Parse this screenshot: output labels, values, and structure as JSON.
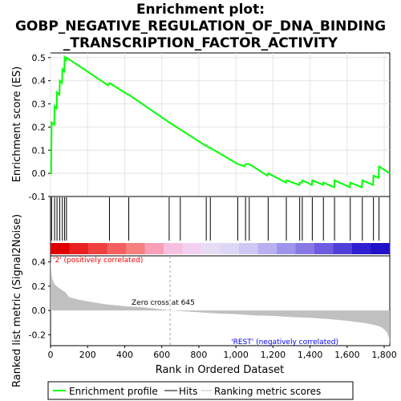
{
  "title_lines": [
    "Enrichment plot:",
    "GOBP_NEGATIVE_REGULATION_OF_DNA_BINDING",
    "_TRANSCRIPTION_FACTOR_ACTIVITY"
  ],
  "colors": {
    "es_line": "#00ff00",
    "hits": "#000000",
    "metric_fill": "#c0c0c0",
    "pos_label": "#ff0000",
    "neg_label": "#0000ff",
    "zero_cross_line": "#a0a0a0"
  },
  "chart_data": [
    {
      "type": "line",
      "panel": "enrichment",
      "ylabel": "Enrichment score (ES)",
      "ylim": [
        -0.1,
        0.52
      ],
      "yticks": [
        -0.1,
        0.0,
        0.1,
        0.2,
        0.3,
        0.4,
        0.5
      ],
      "ytick_labels": [
        "-0.1",
        "0.0",
        "0.1",
        "0.2",
        "0.3",
        "0.4",
        "0.5"
      ],
      "xlim": [
        0,
        1830
      ],
      "grid": true,
      "series": [
        {
          "name": "Enrichment profile",
          "x": [
            0,
            3,
            6,
            20,
            22,
            33,
            35,
            48,
            50,
            62,
            64,
            74,
            76,
            84,
            86,
            310,
            318,
            418,
            422,
            640,
            835,
            840,
            855,
            862,
            1010,
            1048,
            1052,
            1068,
            1072,
            1170,
            1174,
            1270,
            1272,
            1342,
            1344,
            1356,
            1358,
            1410,
            1412,
            1470,
            1472,
            1530,
            1532,
            1615,
            1617,
            1680,
            1682,
            1740,
            1742,
            1770,
            1772,
            1830
          ],
          "y": [
            0.0,
            0.0,
            0.22,
            0.21,
            0.29,
            0.28,
            0.35,
            0.34,
            0.4,
            0.39,
            0.45,
            0.44,
            0.5,
            0.49,
            0.5,
            0.38,
            0.39,
            0.34,
            0.34,
            0.22,
            0.12,
            0.12,
            0.11,
            0.11,
            0.04,
            0.03,
            0.04,
            0.04,
            0.04,
            -0.01,
            0.0,
            -0.04,
            -0.03,
            -0.05,
            -0.04,
            -0.04,
            -0.03,
            -0.05,
            -0.03,
            -0.05,
            -0.04,
            -0.06,
            -0.03,
            -0.06,
            -0.04,
            -0.06,
            -0.03,
            -0.05,
            -0.01,
            -0.02,
            0.03,
            0.0
          ]
        }
      ]
    },
    {
      "type": "scatter",
      "panel": "hits",
      "series": [
        {
          "name": "Hits",
          "x": [
            6,
            22,
            35,
            50,
            64,
            76,
            86,
            318,
            422,
            640,
            700,
            840,
            862,
            1010,
            1052,
            1072,
            1174,
            1272,
            1344,
            1358,
            1412,
            1472,
            1532,
            1617,
            1682,
            1742,
            1772
          ]
        }
      ]
    },
    {
      "type": "area",
      "panel": "ranking_metric",
      "ylabel": "Ranked list metric (Signal2Noise)",
      "xlabel": "Rank in Ordered Dataset",
      "ylim": [
        -0.29,
        0.45
      ],
      "yticks": [
        -0.2,
        0.0,
        0.2,
        0.4
      ],
      "ytick_labels": [
        "-0.2",
        "0.0",
        "0.2",
        "0.4"
      ],
      "xticks": [
        0,
        200,
        400,
        600,
        800,
        1000,
        1200,
        1400,
        1600,
        1800
      ],
      "xtick_labels": [
        "0",
        "200",
        "400",
        "600",
        "800",
        "1,000",
        "1,200",
        "1,400",
        "1,600",
        "1,800"
      ],
      "xlim": [
        0,
        1830
      ],
      "series": [
        {
          "name": "Ranking metric scores",
          "x": [
            0,
            5,
            10,
            20,
            40,
            60,
            80,
            100,
            150,
            200,
            300,
            400,
            500,
            600,
            645,
            700,
            800,
            900,
            1000,
            1100,
            1200,
            1300,
            1400,
            1500,
            1600,
            1650,
            1700,
            1750,
            1780,
            1800,
            1815,
            1825,
            1830
          ],
          "y": [
            0.42,
            0.3,
            0.26,
            0.22,
            0.19,
            0.17,
            0.15,
            0.11,
            0.09,
            0.075,
            0.05,
            0.035,
            0.025,
            0.01,
            0.0,
            -0.005,
            -0.015,
            -0.025,
            -0.03,
            -0.04,
            -0.045,
            -0.055,
            -0.06,
            -0.07,
            -0.085,
            -0.095,
            -0.105,
            -0.12,
            -0.135,
            -0.155,
            -0.18,
            -0.22,
            -0.28
          ]
        }
      ],
      "annotations": [
        "Zero cross at 645",
        "'2' (positively correlated)",
        "'REST' (negatively correlated)"
      ],
      "zero_cross": 645
    }
  ],
  "heatmap_colors": [
    "#e00000",
    "#e82020",
    "#ef4040",
    "#f46060",
    "#f68080",
    "#f7a0b8",
    "#f8c0e0",
    "#f2d2f0",
    "#e6dcf4",
    "#dcd8f6",
    "#cec8f4",
    "#b8b0f0",
    "#9f94ec",
    "#8878e6",
    "#6f5ce0",
    "#5040d8",
    "#3020d0",
    "#2010c8"
  ],
  "legend": [
    {
      "label": "Enrichment profile",
      "color": "#00ff00",
      "icon": "green-line"
    },
    {
      "label": "Hits",
      "color": "#000000",
      "icon": "black-line"
    },
    {
      "label": "Ranking metric scores",
      "color": "#c0c0c0",
      "icon": "gray-line"
    }
  ]
}
